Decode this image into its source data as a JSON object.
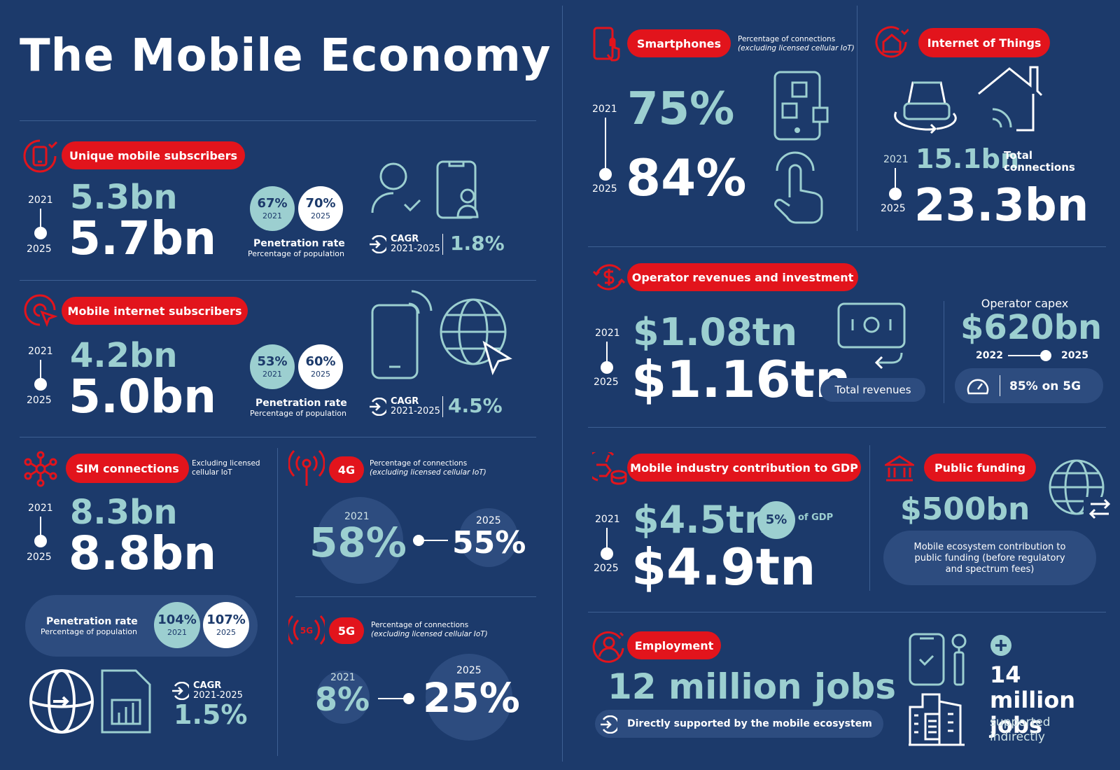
{
  "title": "The Mobile Economy",
  "unique": {
    "label": "Unique mobile subscribers",
    "y1": "2021",
    "y2": "2025",
    "v1": "5.3bn",
    "v2": "5.7bn",
    "pen1": "67%",
    "pen1y": "2021",
    "pen2": "70%",
    "pen2y": "2025",
    "pen_title": "Penetration rate",
    "pen_sub": "Percentage of population",
    "cagr": "CAGR",
    "cagr_years": "2021-2025",
    "cagr_val": "1.8%"
  },
  "internet": {
    "label": "Mobile internet subscribers",
    "y1": "2021",
    "y2": "2025",
    "v1": "4.2bn",
    "v2": "5.0bn",
    "pen1": "53%",
    "pen1y": "2021",
    "pen2": "60%",
    "pen2y": "2025",
    "pen_title": "Penetration rate",
    "pen_sub": "Percentage of population",
    "cagr": "CAGR",
    "cagr_years": "2021-2025",
    "cagr_val": "4.5%"
  },
  "sim": {
    "label": "SIM connections",
    "note": "Excluding licensed cellular IoT",
    "y1": "2021",
    "y2": "2025",
    "v1": "8.3bn",
    "v2": "8.8bn",
    "pen_title": "Penetration rate",
    "pen_sub": "Percentage of population",
    "pen1": "104%",
    "pen1y": "2021",
    "pen2": "107%",
    "pen2y": "2025",
    "cagr": "CAGR",
    "cagr_years": "2021-2025",
    "cagr_val": "1.5%"
  },
  "g4": {
    "label": "4G",
    "note1": "Percentage of connections",
    "note2": "(excluding licensed cellular IoT)",
    "y1": "2021",
    "v1": "58%",
    "y2": "2025",
    "v2": "55%"
  },
  "g5": {
    "label": "5G",
    "note1": "Percentage of connections",
    "note2": "(excluding licensed cellular IoT)",
    "y1": "2021",
    "v1": "8%",
    "y2": "2025",
    "v2": "25%",
    "icon_text": "5G"
  },
  "smart": {
    "label": "Smartphones",
    "note1": "Percentage of connections",
    "note2": "(excluding licensed cellular IoT)",
    "y1": "2021",
    "y2": "2025",
    "v1": "75%",
    "v2": "84%"
  },
  "iot": {
    "label": "Internet of Things",
    "y1": "2021",
    "y2": "2025",
    "v1": "15.1bn",
    "v2": "23.3bn",
    "note": "Total connections"
  },
  "rev": {
    "label": "Operator revenues and investment",
    "y1": "2021",
    "y2": "2025",
    "v1": "$1.08tn",
    "v2": "$1.16tn",
    "total": "Total revenues",
    "capex_title": "Operator capex",
    "capex_val": "$620bn",
    "capex_y1": "2022",
    "capex_y2": "2025",
    "capex_5g": "85% on 5G"
  },
  "gdp": {
    "label": "Mobile industry contribution to GDP",
    "y1": "2021",
    "y2": "2025",
    "v1": "$4.5tn",
    "pct": "5%",
    "pct_note": "of GDP",
    "v2": "$4.9tn"
  },
  "public": {
    "label": "Public funding",
    "val": "$500bn",
    "desc": "Mobile ecosystem contribution to public funding (before regulatory and spectrum fees)"
  },
  "emp": {
    "label": "Employment",
    "jobs": "12 million jobs",
    "direct": "Directly supported by the mobile ecosystem",
    "indirect_val": "14 million jobs",
    "indirect_note": "supported indirectly"
  },
  "colors": {
    "bg": "#1c3a6b",
    "red": "#e2141c",
    "teal": "#9ccfd0",
    "box": "#2d4c7f"
  }
}
